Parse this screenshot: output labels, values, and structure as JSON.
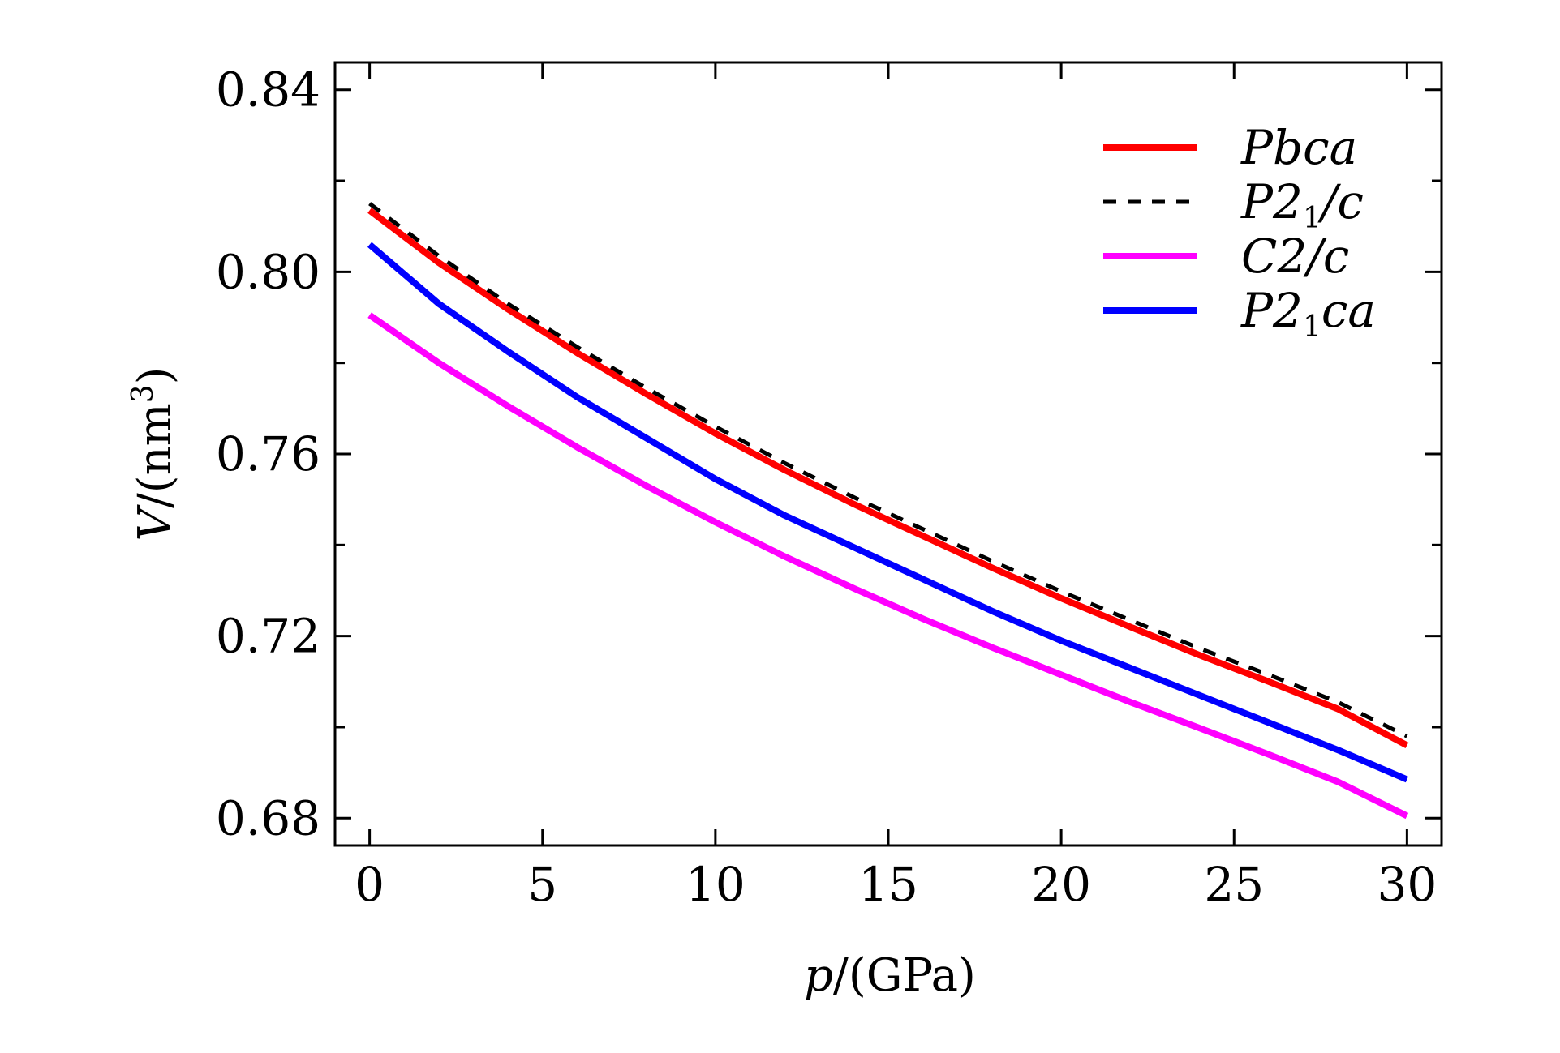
{
  "chart_data": {
    "type": "line",
    "xlabel_italic": "p",
    "xlabel_rest": "/(GPa)",
    "ylabel_italic": "V",
    "ylabel_rest": "/(nm",
    "ylabel_sup": "3",
    "ylabel_close": ")",
    "xlim": [
      -1,
      31
    ],
    "ylim": [
      0.674,
      0.846
    ],
    "x_ticks": [
      0,
      5,
      10,
      15,
      20,
      25,
      30
    ],
    "x_tick_labels": [
      "0",
      "5",
      "10",
      "15",
      "20",
      "25",
      "30"
    ],
    "y_ticks": [
      0.68,
      0.72,
      0.76,
      0.8,
      0.84
    ],
    "y_tick_labels": [
      "0.68",
      "0.72",
      "0.76",
      "0.80",
      "0.84"
    ],
    "y_minor_ticks": [
      0.7,
      0.74,
      0.78,
      0.82
    ],
    "legend_position": "top-right",
    "series": [
      {
        "name": "Pbca",
        "legend_main": "Pbca",
        "legend_sub": "",
        "legend_tail": "",
        "color": "#ff0000",
        "dash": "solid",
        "x": [
          0,
          2,
          4,
          6,
          8,
          10,
          12,
          14,
          16,
          18,
          20,
          22,
          24,
          26,
          28,
          30
        ],
        "y": [
          0.8135,
          0.802,
          0.7918,
          0.7822,
          0.7732,
          0.7645,
          0.7565,
          0.749,
          0.742,
          0.735,
          0.7283,
          0.722,
          0.7158,
          0.71,
          0.704,
          0.696
        ]
      },
      {
        "name": "P21/c",
        "legend_main": "P2",
        "legend_sub": "1",
        "legend_tail": "/c",
        "color": "#000000",
        "dash": "dashed",
        "x": [
          0,
          2,
          4,
          6,
          8,
          10,
          12,
          14,
          16,
          18,
          20,
          22,
          24,
          26,
          28,
          30
        ],
        "y": [
          0.815,
          0.8035,
          0.793,
          0.7835,
          0.7745,
          0.766,
          0.758,
          0.7505,
          0.7435,
          0.7365,
          0.7298,
          0.7235,
          0.7173,
          0.7115,
          0.7055,
          0.698
        ]
      },
      {
        "name": "C2/c",
        "legend_main": "C2/c",
        "legend_sub": "",
        "legend_tail": "",
        "color": "#ff00ff",
        "dash": "solid",
        "x": [
          0,
          2,
          4,
          6,
          8,
          10,
          12,
          14,
          16,
          18,
          20,
          22,
          24,
          26,
          28,
          30
        ],
        "y": [
          0.7905,
          0.78,
          0.7705,
          0.7615,
          0.753,
          0.745,
          0.7375,
          0.7305,
          0.7238,
          0.7175,
          0.7115,
          0.7055,
          0.6998,
          0.694,
          0.688,
          0.6805
        ]
      },
      {
        "name": "P21ca",
        "legend_main": "P2",
        "legend_sub": "1",
        "legend_tail": "ca",
        "color": "#0000ff",
        "dash": "solid",
        "x": [
          0,
          2,
          4,
          6,
          8,
          10,
          12,
          14,
          16,
          18,
          20,
          22,
          24,
          26,
          28,
          30
        ],
        "y": [
          0.806,
          0.793,
          0.7825,
          0.7725,
          0.7635,
          0.7545,
          0.7465,
          0.7395,
          0.7325,
          0.7255,
          0.719,
          0.713,
          0.707,
          0.701,
          0.695,
          0.6885
        ]
      }
    ]
  }
}
